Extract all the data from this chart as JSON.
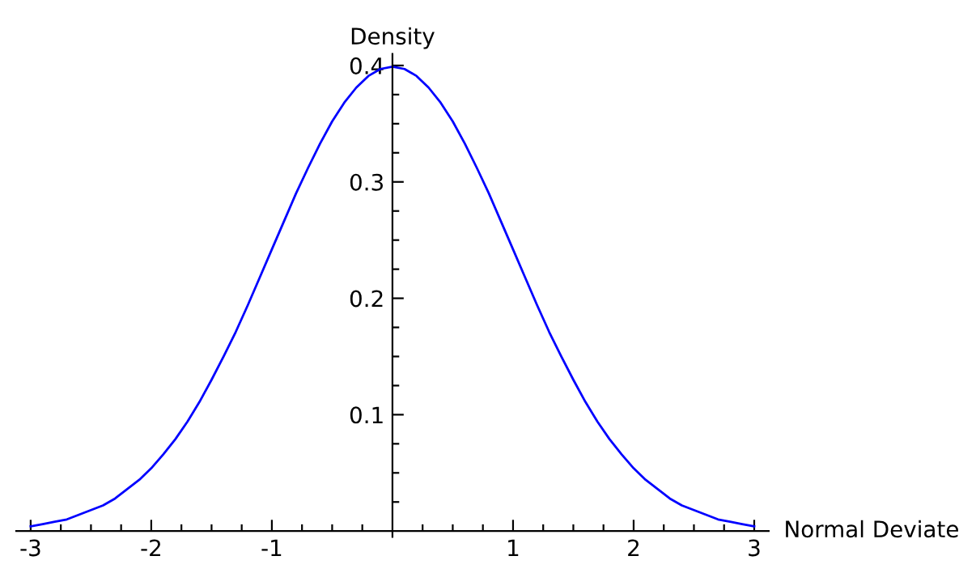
{
  "chart_data": {
    "type": "line",
    "xlabel": "Normal Deviate",
    "ylabel": "Density",
    "x": [
      -3.0,
      -2.9,
      -2.8,
      -2.7,
      -2.6,
      -2.5,
      -2.4,
      -2.3,
      -2.2,
      -2.1,
      -2.0,
      -1.9,
      -1.8,
      -1.7,
      -1.6,
      -1.5,
      -1.4,
      -1.3,
      -1.2,
      -1.1,
      -1.0,
      -0.9,
      -0.8,
      -0.7,
      -0.6,
      -0.5,
      -0.4,
      -0.3,
      -0.2,
      -0.1,
      0.0,
      0.1,
      0.2,
      0.3,
      0.4,
      0.5,
      0.6,
      0.7,
      0.8,
      0.9,
      1.0,
      1.1,
      1.2,
      1.3,
      1.4,
      1.5,
      1.6,
      1.7,
      1.8,
      1.9,
      2.0,
      2.1,
      2.2,
      2.3,
      2.4,
      2.5,
      2.6,
      2.7,
      2.8,
      2.9,
      3.0
    ],
    "series": [
      {
        "color": "#0000ff",
        "values": [
          0.004,
          0.006,
          0.008,
          0.01,
          0.014,
          0.018,
          0.022,
          0.028,
          0.036,
          0.044,
          0.054,
          0.066,
          0.079,
          0.094,
          0.111,
          0.13,
          0.15,
          0.171,
          0.194,
          0.218,
          0.242,
          0.266,
          0.29,
          0.312,
          0.333,
          0.352,
          0.368,
          0.381,
          0.391,
          0.397,
          0.399,
          0.397,
          0.391,
          0.381,
          0.368,
          0.352,
          0.333,
          0.312,
          0.29,
          0.266,
          0.242,
          0.218,
          0.194,
          0.171,
          0.15,
          0.13,
          0.111,
          0.094,
          0.079,
          0.066,
          0.054,
          0.044,
          0.036,
          0.028,
          0.022,
          0.018,
          0.014,
          0.01,
          0.008,
          0.006,
          0.004
        ]
      }
    ],
    "xlim": [
      -3.12,
      3.12
    ],
    "ylim": [
      -0.005,
      0.41
    ],
    "xticks": [
      -3,
      {
        "value": -2.75,
        "label": null
      },
      {
        "value": -2.5,
        "label": null
      },
      {
        "value": -2.25,
        "label": null
      },
      -2,
      {
        "value": -1.75,
        "label": null
      },
      {
        "value": -1.5,
        "label": null
      },
      {
        "value": -1.25,
        "label": null
      },
      -1,
      {
        "value": -0.75,
        "label": null
      },
      {
        "value": -0.5,
        "label": null
      },
      {
        "value": -0.25,
        "label": null
      },
      {
        "value": 0.25,
        "label": null
      },
      {
        "value": 0.5,
        "label": null
      },
      {
        "value": 0.75,
        "label": null
      },
      1,
      {
        "value": 1.25,
        "label": null
      },
      {
        "value": 1.5,
        "label": null
      },
      {
        "value": 1.75,
        "label": null
      },
      2,
      {
        "value": 2.25,
        "label": null
      },
      {
        "value": 2.5,
        "label": null
      },
      {
        "value": 2.75,
        "label": null
      },
      3
    ],
    "yticks": [
      {
        "value": 0.025,
        "label": null
      },
      {
        "value": 0.05,
        "label": null
      },
      {
        "value": 0.075,
        "label": null
      },
      0.1,
      {
        "value": 0.125,
        "label": null
      },
      {
        "value": 0.15,
        "label": null
      },
      {
        "value": 0.175,
        "label": null
      },
      0.2,
      {
        "value": 0.225,
        "label": null
      },
      {
        "value": 0.25,
        "label": null
      },
      {
        "value": 0.275,
        "label": null
      },
      0.3,
      {
        "value": 0.325,
        "label": null
      },
      {
        "value": 0.35,
        "label": null
      },
      {
        "value": 0.375,
        "label": null
      },
      0.4
    ],
    "grid": false,
    "marker": "none",
    "line_style": "solid"
  }
}
